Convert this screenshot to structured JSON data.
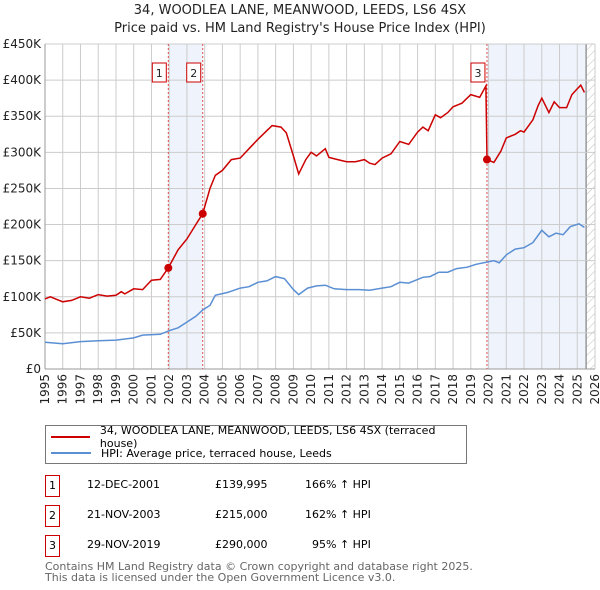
{
  "header": {
    "title": "34, WOODLEA LANE, MEANWOOD, LEEDS, LS6 4SX",
    "subtitle": "Price paid vs. HM Land Registry's House Price Index (HPI)"
  },
  "colors": {
    "property": "#cc0000",
    "hpi": "#5b8fd4",
    "shade": "#eef3fc"
  },
  "chart_data": {
    "type": "line",
    "title": "34, WOODLEA LANE, MEANWOOD, LEEDS, LS6 4SX",
    "xlim": [
      1995,
      2026
    ],
    "ylim": [
      0,
      450000
    ],
    "y_ticks": [
      {
        "v": 0,
        "label": "£0"
      },
      {
        "v": 50000,
        "label": "£50K"
      },
      {
        "v": 100000,
        "label": "£100K"
      },
      {
        "v": 150000,
        "label": "£150K"
      },
      {
        "v": 200000,
        "label": "£200K"
      },
      {
        "v": 250000,
        "label": "£250K"
      },
      {
        "v": 300000,
        "label": "£300K"
      },
      {
        "v": 350000,
        "label": "£350K"
      },
      {
        "v": 400000,
        "label": "£400K"
      },
      {
        "v": 450000,
        "label": "£450K"
      }
    ],
    "x_ticks": [
      "1995",
      "1996",
      "1997",
      "1998",
      "1999",
      "2000",
      "2001",
      "2002",
      "2003",
      "2004",
      "2005",
      "2006",
      "2007",
      "2008",
      "2009",
      "2010",
      "2011",
      "2012",
      "2013",
      "2014",
      "2015",
      "2016",
      "2017",
      "2018",
      "2019",
      "2020",
      "2021",
      "2022",
      "2023",
      "2024",
      "2025",
      "2026"
    ],
    "shaded_ranges": [
      [
        2001.95,
        2003.89
      ],
      [
        2019.91,
        2025.5
      ]
    ],
    "forecast_from": 2025.5,
    "series": [
      {
        "name": "34, WOODLEA LANE, MEANWOOD, LEEDS, LS6 4SX (terraced house)",
        "color": "#cc0000",
        "points": [
          [
            1995,
            97
          ],
          [
            1995.3,
            100
          ],
          [
            1996,
            93
          ],
          [
            1996.5,
            95
          ],
          [
            1997,
            100
          ],
          [
            1997.5,
            98
          ],
          [
            1998,
            103
          ],
          [
            1998.5,
            101
          ],
          [
            1999,
            102
          ],
          [
            1999.3,
            107
          ],
          [
            1999.5,
            104
          ],
          [
            2000,
            111
          ],
          [
            2000.5,
            110
          ],
          [
            2001,
            123
          ],
          [
            2001.5,
            124
          ],
          [
            2001.95,
            140
          ],
          [
            2002.5,
            165
          ],
          [
            2003,
            180
          ],
          [
            2003.5,
            200
          ],
          [
            2003.89,
            215
          ],
          [
            2004.3,
            250
          ],
          [
            2004.6,
            268
          ],
          [
            2005,
            275
          ],
          [
            2005.5,
            290
          ],
          [
            2006,
            292
          ],
          [
            2006.5,
            305
          ],
          [
            2007,
            318
          ],
          [
            2007.5,
            330
          ],
          [
            2007.8,
            337
          ],
          [
            2008.3,
            335
          ],
          [
            2008.6,
            327
          ],
          [
            2009,
            295
          ],
          [
            2009.3,
            270
          ],
          [
            2009.7,
            290
          ],
          [
            2010,
            300
          ],
          [
            2010.3,
            295
          ],
          [
            2010.8,
            305
          ],
          [
            2011,
            293
          ],
          [
            2011.5,
            290
          ],
          [
            2012,
            287
          ],
          [
            2012.5,
            287
          ],
          [
            2013,
            290
          ],
          [
            2013.3,
            285
          ],
          [
            2013.6,
            283
          ],
          [
            2014,
            292
          ],
          [
            2014.5,
            298
          ],
          [
            2015,
            315
          ],
          [
            2015.5,
            311
          ],
          [
            2016,
            328
          ],
          [
            2016.3,
            335
          ],
          [
            2016.6,
            330
          ],
          [
            2017,
            352
          ],
          [
            2017.3,
            348
          ],
          [
            2017.7,
            355
          ],
          [
            2018,
            363
          ],
          [
            2018.5,
            368
          ],
          [
            2019,
            380
          ],
          [
            2019.5,
            376
          ],
          [
            2019.85,
            392
          ],
          [
            2019.91,
            290
          ],
          [
            2020.3,
            286
          ],
          [
            2020.7,
            302
          ],
          [
            2021,
            320
          ],
          [
            2021.5,
            325
          ],
          [
            2021.8,
            330
          ],
          [
            2022,
            328
          ],
          [
            2022.5,
            345
          ],
          [
            2022.8,
            365
          ],
          [
            2023,
            375
          ],
          [
            2023.4,
            355
          ],
          [
            2023.7,
            370
          ],
          [
            2024,
            362
          ],
          [
            2024.4,
            362
          ],
          [
            2024.7,
            380
          ],
          [
            2025,
            388
          ],
          [
            2025.2,
            393
          ],
          [
            2025.4,
            383
          ]
        ]
      },
      {
        "name": "HPI: Average price, terraced house, Leeds",
        "color": "#5b8fd4",
        "points": [
          [
            1995,
            37
          ],
          [
            1996,
            35
          ],
          [
            1997,
            38
          ],
          [
            1998,
            39
          ],
          [
            1999,
            40
          ],
          [
            2000,
            43
          ],
          [
            2000.5,
            47
          ],
          [
            2001.5,
            48
          ],
          [
            2002,
            53
          ],
          [
            2002.5,
            57
          ],
          [
            2003,
            65
          ],
          [
            2003.5,
            73
          ],
          [
            2003.9,
            82
          ],
          [
            2004.3,
            88
          ],
          [
            2004.6,
            102
          ],
          [
            2005.3,
            106
          ],
          [
            2006,
            112
          ],
          [
            2006.5,
            114
          ],
          [
            2007,
            120
          ],
          [
            2007.5,
            122
          ],
          [
            2008,
            128
          ],
          [
            2008.5,
            125
          ],
          [
            2009,
            110
          ],
          [
            2009.3,
            103
          ],
          [
            2009.8,
            112
          ],
          [
            2010.3,
            115
          ],
          [
            2010.8,
            116
          ],
          [
            2011.3,
            111
          ],
          [
            2012,
            110
          ],
          [
            2012.7,
            110
          ],
          [
            2013.3,
            109
          ],
          [
            2014,
            112
          ],
          [
            2014.5,
            114
          ],
          [
            2015,
            120
          ],
          [
            2015.5,
            119
          ],
          [
            2016.3,
            127
          ],
          [
            2016.7,
            128
          ],
          [
            2017.2,
            134
          ],
          [
            2017.7,
            134
          ],
          [
            2018.2,
            139
          ],
          [
            2018.8,
            141
          ],
          [
            2019.3,
            145
          ],
          [
            2019.9,
            148
          ],
          [
            2020.3,
            150
          ],
          [
            2020.6,
            147
          ],
          [
            2021,
            158
          ],
          [
            2021.5,
            166
          ],
          [
            2022,
            168
          ],
          [
            2022.5,
            175
          ],
          [
            2023,
            192
          ],
          [
            2023.4,
            183
          ],
          [
            2023.8,
            188
          ],
          [
            2024.2,
            186
          ],
          [
            2024.6,
            197
          ],
          [
            2025.1,
            201
          ],
          [
            2025.4,
            196
          ]
        ]
      }
    ],
    "sales": [
      {
        "label": "1",
        "x": 2001.95,
        "price": 139995
      },
      {
        "label": "2",
        "x": 2003.89,
        "price": 215000
      },
      {
        "label": "3",
        "x": 2019.91,
        "price": 290000
      }
    ]
  },
  "legend": {
    "property": "34, WOODLEA LANE, MEANWOOD, LEEDS, LS6 4SX (terraced house)",
    "hpi": "HPI: Average price, terraced house, Leeds"
  },
  "transactions": [
    {
      "num": "1",
      "date": "12-DEC-2001",
      "price": "£139,995",
      "hpi": "166% ↑ HPI"
    },
    {
      "num": "2",
      "date": "21-NOV-2003",
      "price": "£215,000",
      "hpi": "162% ↑ HPI"
    },
    {
      "num": "3",
      "date": "29-NOV-2019",
      "price": "£290,000",
      "hpi": "95% ↑ HPI"
    }
  ],
  "footer": {
    "line1": "Contains HM Land Registry data © Crown copyright and database right 2025.",
    "line2": "This data is licensed under the Open Government Licence v3.0."
  }
}
